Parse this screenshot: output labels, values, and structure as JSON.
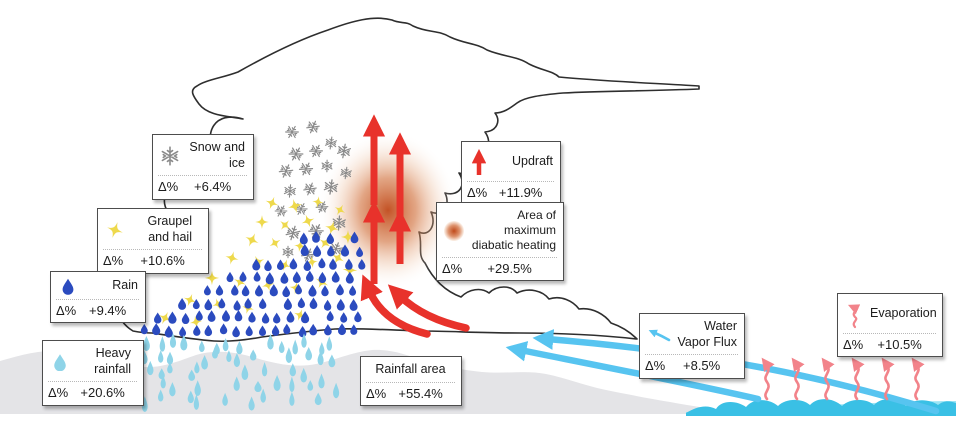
{
  "figure": {
    "delta_symbol": "Δ%",
    "items": [
      {
        "id": "snow_ice",
        "label": "Snow and ice",
        "delta": "+6.4%",
        "icon": "snowflake-icon"
      },
      {
        "id": "graupel_hail",
        "label": "Graupel and hail",
        "delta": "+10.6%",
        "icon": "graupel-star-icon"
      },
      {
        "id": "rain",
        "label": "Rain",
        "delta": "+9.4%",
        "icon": "raindrop-icon"
      },
      {
        "id": "heavy_rainfall",
        "label": "Heavy rainfall",
        "delta": "+20.6%",
        "icon": "light-raindrop-icon"
      },
      {
        "id": "updraft",
        "label": "Updraft",
        "delta": "+11.9%",
        "icon": "up-arrow-icon"
      },
      {
        "id": "diabatic_heating",
        "label": "Area of maximum diabatic heating",
        "delta": "+29.5%",
        "icon": "heating-spot-icon"
      },
      {
        "id": "rainfall_area",
        "label": "Rainfall area",
        "delta": "+55.4%",
        "icon": null
      },
      {
        "id": "water_vapor_flux",
        "label": "Water Vapor Flux",
        "delta": "+8.5%",
        "icon": "flux-arrow-icon"
      },
      {
        "id": "evaporation",
        "label": "Evaporation",
        "delta": "+10.5%",
        "icon": "wavy-arrow-icon"
      }
    ],
    "colors": {
      "snow": "#8a8a8a",
      "graupel": "#eed94c",
      "rain": "#2b4bbf",
      "heavy_rain": "#8fd4e8",
      "updraft": "#e8322b",
      "heating": "#c0491a",
      "flux": "#57c4f0",
      "evaporation": "#f2838a",
      "water": "#3ac0e5",
      "water_light": "#9ce4f4",
      "terrain": "#e4e4e7",
      "cloud_outline": "#2e2e2e"
    }
  }
}
